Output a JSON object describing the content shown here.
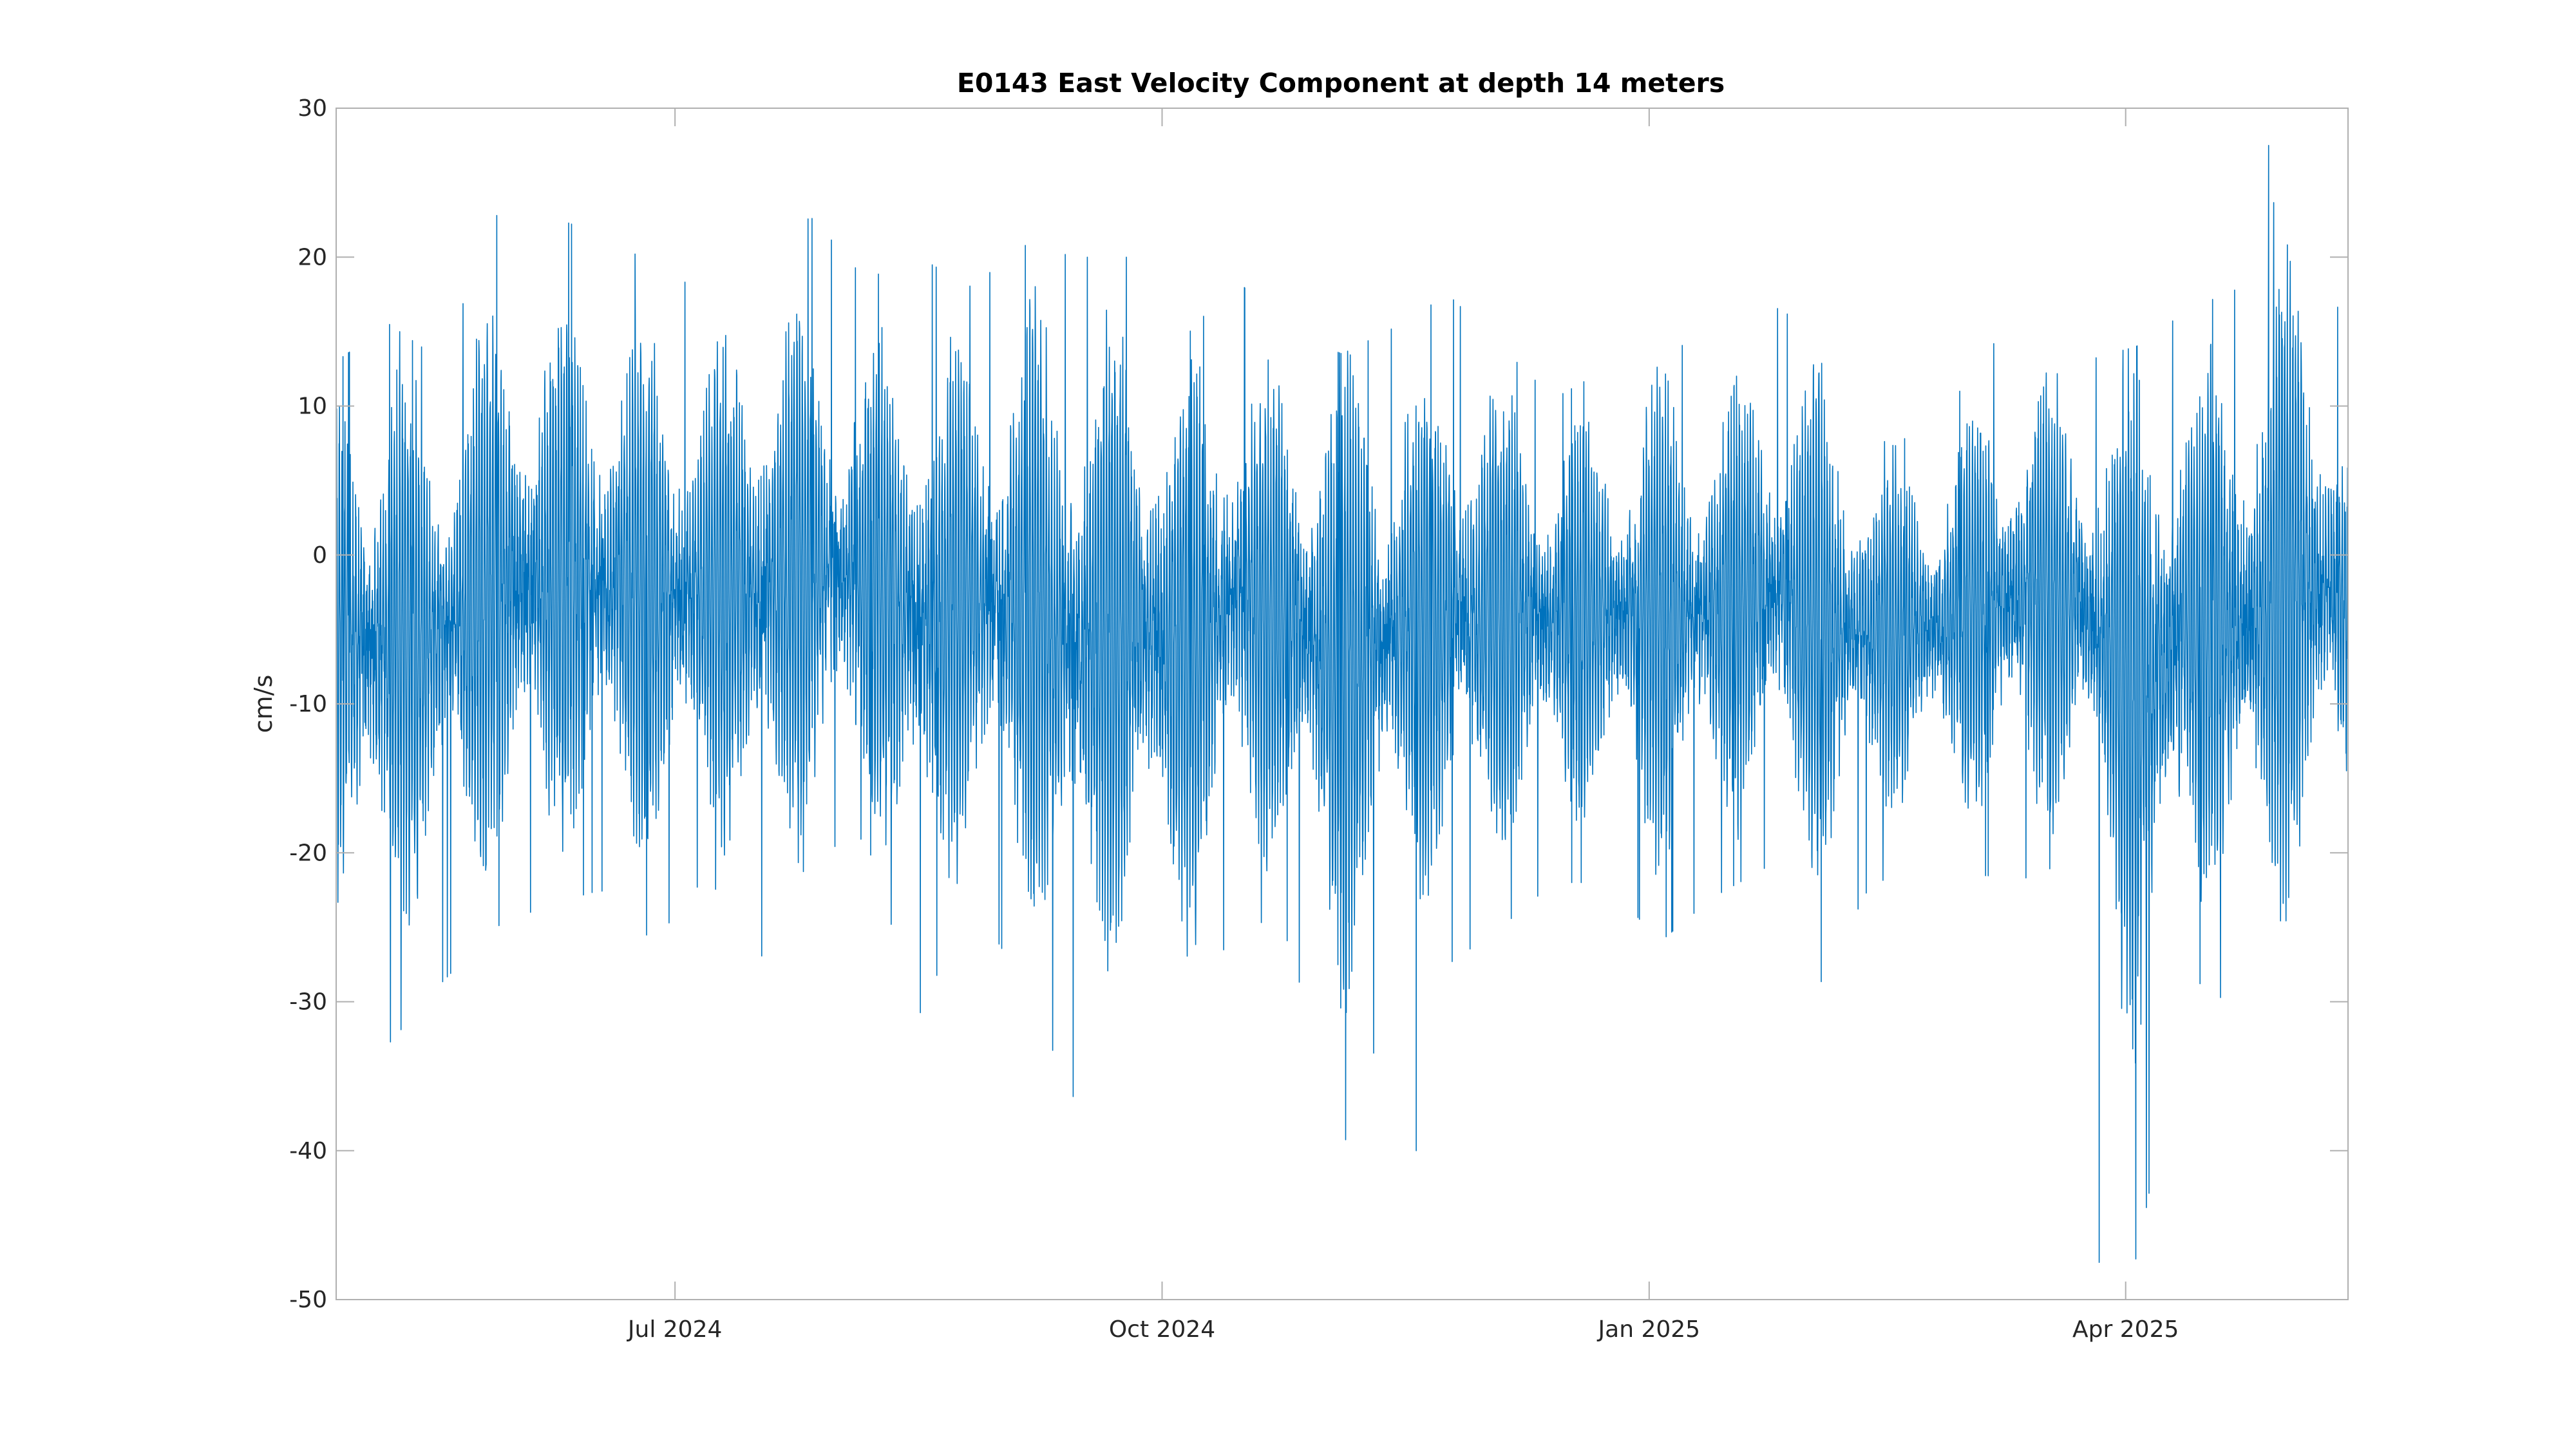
{
  "chart_data": {
    "type": "line",
    "title": "E0143 East Velocity Component at depth 14 meters",
    "xlabel": "",
    "ylabel": "cm/s",
    "xlim": [
      "2024-04-28",
      "2025-05-13"
    ],
    "ylim": [
      -50,
      30
    ],
    "x_ticks": [
      {
        "date": "2024-07-01",
        "label": "Jul 2024"
      },
      {
        "date": "2024-10-01",
        "label": "Oct 2024"
      },
      {
        "date": "2025-01-01",
        "label": "Jan 2025"
      },
      {
        "date": "2025-04-01",
        "label": "Apr 2025"
      }
    ],
    "y_ticks": [
      30,
      20,
      10,
      0,
      -10,
      -20,
      -30,
      -40,
      -50
    ],
    "grid": false,
    "line_color": "#0072BD",
    "sampling": "hourly",
    "series": [
      {
        "name": "",
        "start": "2024-04-28",
        "end": "2025-05-13",
        "summary": {
          "mean": -3,
          "min": -47.5,
          "max": 27.5
        },
        "daily_envelope": {
          "dates": [
            "2024-04-28",
            "2024-05-08",
            "2024-05-18",
            "2024-05-28",
            "2024-06-07",
            "2024-06-17",
            "2024-06-27",
            "2024-07-07",
            "2024-07-17",
            "2024-07-27",
            "2024-08-06",
            "2024-08-16",
            "2024-08-26",
            "2024-09-05",
            "2024-09-15",
            "2024-09-25",
            "2024-10-05",
            "2024-10-15",
            "2024-10-25",
            "2024-11-04",
            "2024-11-14",
            "2024-11-24",
            "2024-12-04",
            "2024-12-14",
            "2024-12-24",
            "2025-01-03",
            "2025-01-13",
            "2025-01-23",
            "2025-02-02",
            "2025-02-12",
            "2025-02-22",
            "2025-03-04",
            "2025-03-14",
            "2025-03-24",
            "2025-04-03",
            "2025-04-13",
            "2025-04-23",
            "2025-05-03",
            "2025-05-13"
          ],
          "max": [
            13,
            15.5,
            13,
            22.8,
            22.8,
            21.5,
            19.5,
            17.5,
            22.2,
            22.6,
            18.5,
            20,
            18,
            20.8,
            20,
            20,
            14.5,
            18.5,
            15,
            13.5,
            15.3,
            17.5,
            14,
            10.5,
            12.5,
            14.5,
            13.5,
            17,
            15,
            7.5,
            8,
            12.5,
            18,
            13,
            14,
            16.5,
            18,
            27.5,
            14
          ],
          "min": [
            -33,
            -32.8,
            -28.7,
            -25,
            -23.5,
            -22.5,
            -26,
            -21.5,
            -27.2,
            -20,
            -19,
            -31,
            -23,
            -29,
            -37,
            -32.5,
            -36.2,
            -23.5,
            -26,
            -40,
            -29,
            -27.5,
            -25,
            -22,
            -22,
            -26,
            -23,
            -21,
            -29,
            -22,
            -21.3,
            -21.5,
            -21.7,
            -20,
            -47.5,
            -28.3,
            -30.7,
            -28,
            -21
          ]
        }
      }
    ]
  }
}
